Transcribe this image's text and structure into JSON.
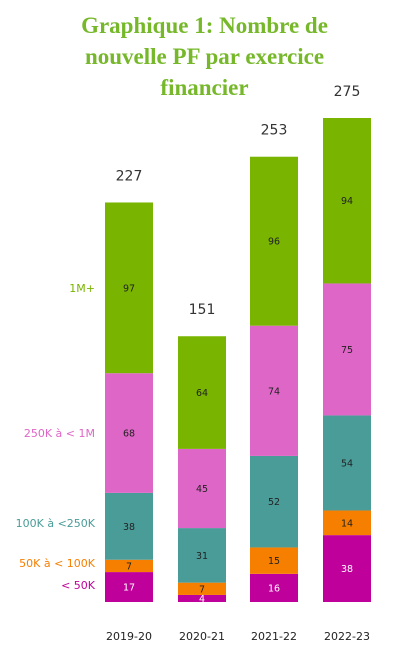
{
  "title_lines": [
    "Graphique 1: Nombre de",
    "nouvelle PF par exercice",
    "financier"
  ],
  "chart_data": {
    "type": "bar",
    "stacked": true,
    "categories": [
      "2019-20",
      "2020-21",
      "2021-22",
      "2022-23"
    ],
    "totals": [
      227,
      151,
      253,
      275
    ],
    "series": [
      {
        "name": "< 50K",
        "color": "#c0009b",
        "text_color": "#ffffff",
        "values": [
          17,
          4,
          16,
          38
        ]
      },
      {
        "name": "50K à < 100K",
        "color": "#f77f00",
        "text_color": "#222222",
        "values": [
          7,
          7,
          15,
          14
        ]
      },
      {
        "name": "100K à <250K",
        "color": "#4a9c99",
        "text_color": "#222222",
        "values": [
          38,
          31,
          52,
          54
        ]
      },
      {
        "name": "250K à < 1M",
        "color": "#de66c7",
        "text_color": "#222222",
        "values": [
          68,
          45,
          74,
          75
        ]
      },
      {
        "name": "1M+",
        "color": "#78b400",
        "text_color": "#222222",
        "values": [
          97,
          64,
          96,
          94
        ]
      }
    ],
    "ylim": [
      0,
      275
    ],
    "grid": false,
    "legend_position": "left"
  }
}
